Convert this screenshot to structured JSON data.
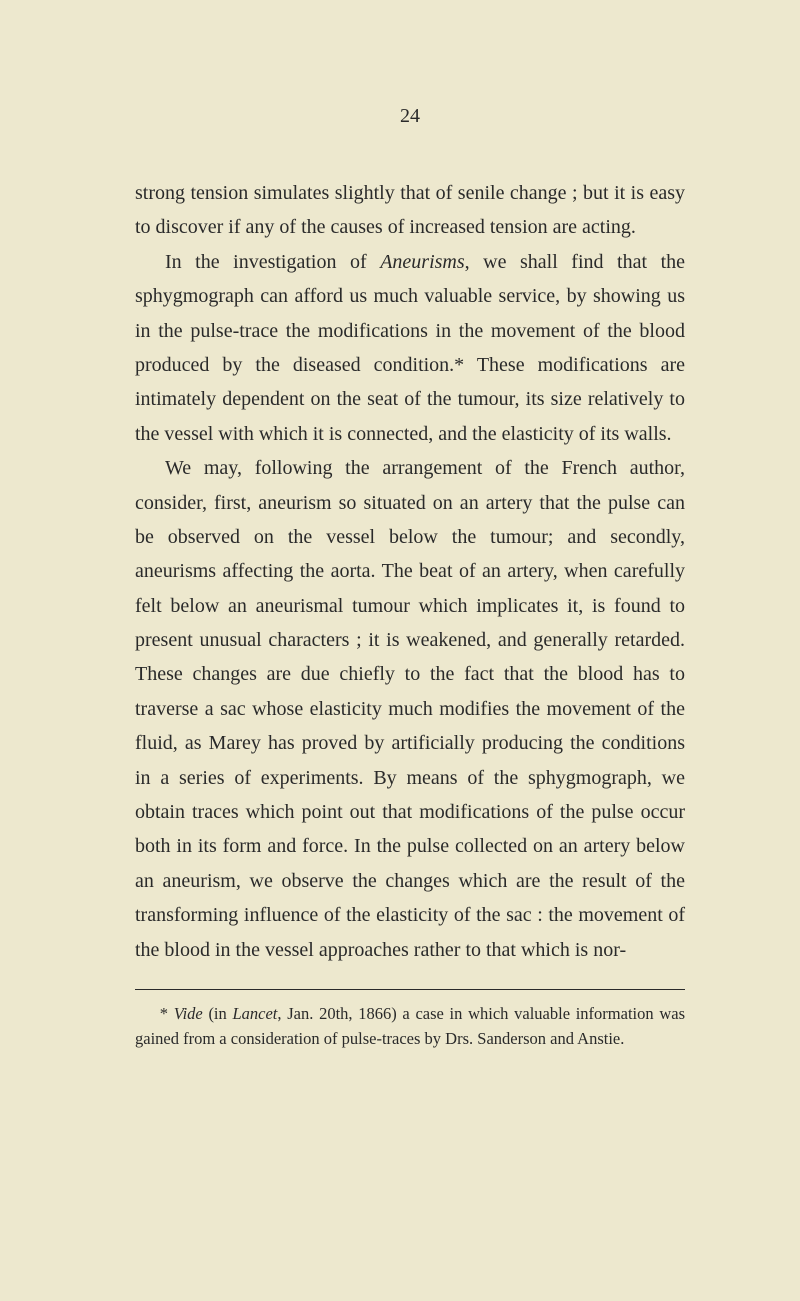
{
  "pageNumber": "24",
  "paragraphs": [
    {
      "text": "strong tension simulates slightly that of senile change ; but it is easy to discover if any of the causes of increased tension are acting.",
      "indent": false
    },
    {
      "html": "In the investigation of <span class=\"italic\">Aneurisms</span>, we shall find that the sphygmograph can afford us much valuable service, by showing us in the pulse-trace the modifications in the movement of the blood produced by the diseased condition.* These modifications are intimately dependent on the seat of the tumour, its size relatively to the vessel with which it is connected, and the elasticity of its walls.",
      "indent": true
    },
    {
      "text": "We may, following the arrangement of the French author, consider, first, aneurism so situated on an artery that the pulse can be observed on the vessel below the tumour; and secondly, aneurisms affecting the aorta. The beat of an artery, when carefully felt below an aneurismal tumour which implicates it, is found to present unusual characters ; it is weakened, and generally retarded. These changes are due chiefly to the fact that the blood has to traverse a sac whose elasticity much modifies the movement of the fluid, as Marey has proved by artificially producing the conditions in a series of experiments. By means of the sphygmograph, we obtain traces which point out that modifications of the pulse occur both in its form and force. In the pulse collected on an artery below an aneurism, we observe the changes which are the result of the transforming influence of the elasticity of the sac : the movement of the blood in the vessel approaches rather to that which is nor-",
      "indent": true
    }
  ],
  "footnote": {
    "html": "* <span class=\"italic\">Vide</span> (in <span class=\"italic\">Lancet</span>, Jan. 20th, 1866) a case in which valuable information was gained from a consideration of pulse-traces by Drs. Sanderson and Anstie."
  },
  "colors": {
    "background": "#ede8ce",
    "text": "#2a2a2a"
  },
  "typography": {
    "bodyFontSize": 20,
    "footnoteFontSize": 16.5,
    "lineHeight": 1.72,
    "fontFamily": "Georgia, Times New Roman, serif"
  }
}
